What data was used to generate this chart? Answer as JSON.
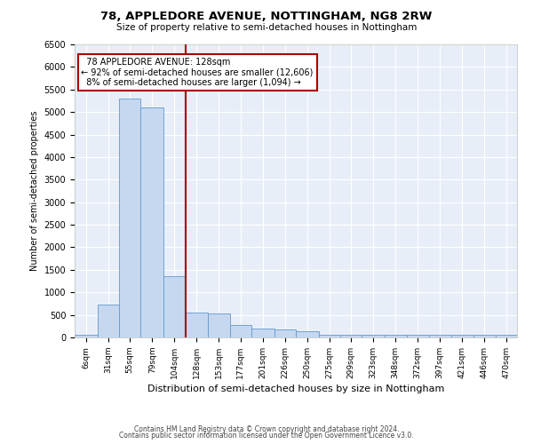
{
  "title": "78, APPLEDORE AVENUE, NOTTINGHAM, NG8 2RW",
  "subtitle": "Size of property relative to semi-detached houses in Nottingham",
  "xlabel": "Distribution of semi-detached houses by size in Nottingham",
  "ylabel": "Number of semi-detached properties",
  "property_label": "78 APPLEDORE AVENUE: 128sqm",
  "pct_smaller": 92,
  "count_smaller": 12606,
  "pct_larger": 8,
  "count_larger": 1094,
  "bin_edges": [
    6,
    31,
    55,
    79,
    104,
    128,
    153,
    177,
    201,
    226,
    250,
    275,
    299,
    323,
    348,
    372,
    397,
    421,
    446,
    470,
    494
  ],
  "bar_heights": [
    50,
    720,
    5300,
    5100,
    1350,
    550,
    530,
    270,
    200,
    175,
    130,
    50,
    50,
    50,
    50,
    50,
    50,
    50,
    50,
    50
  ],
  "bar_color": "#c5d8f0",
  "bar_edge_color": "#6699cc",
  "vline_color": "#aa0000",
  "vline_x": 128,
  "annotation_box_color": "#aa0000",
  "bg_color": "#e8eef8",
  "ylim": [
    0,
    6500
  ],
  "yticks": [
    0,
    500,
    1000,
    1500,
    2000,
    2500,
    3000,
    3500,
    4000,
    4500,
    5000,
    5500,
    6000,
    6500
  ],
  "footer_line1": "Contains HM Land Registry data © Crown copyright and database right 2024.",
  "footer_line2": "Contains public sector information licensed under the Open Government Licence v3.0."
}
